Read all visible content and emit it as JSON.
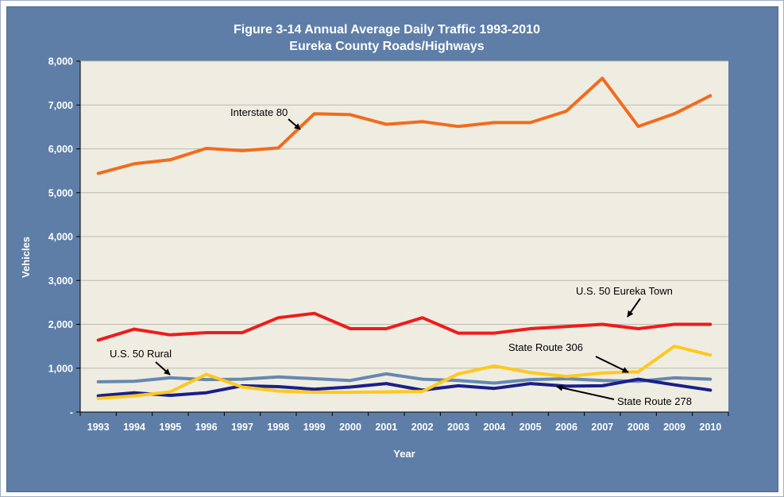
{
  "chart_data": {
    "type": "line",
    "title": "Figure 3-14 Annual Average Daily Traffic 1993-2010",
    "subtitle": "Eureka County Roads/Highways",
    "xlabel": "Year",
    "ylabel": "Vehicles",
    "ylim": [
      0,
      8000
    ],
    "y_ticks": [
      {
        "value": 0,
        "label": "-"
      },
      {
        "value": 1000,
        "label": "1,000"
      },
      {
        "value": 2000,
        "label": "2,000"
      },
      {
        "value": 3000,
        "label": "3,000"
      },
      {
        "value": 4000,
        "label": "4,000"
      },
      {
        "value": 5000,
        "label": "5,000"
      },
      {
        "value": 6000,
        "label": "6,000"
      },
      {
        "value": 7000,
        "label": "7,000"
      },
      {
        "value": 8000,
        "label": "8,000"
      }
    ],
    "grid": true,
    "legend": "none",
    "categories": [
      "1993",
      "1994",
      "1995",
      "1996",
      "1997",
      "1998",
      "1999",
      "2000",
      "2001",
      "2002",
      "2003",
      "2004",
      "2005",
      "2006",
      "2007",
      "2008",
      "2009",
      "2010"
    ],
    "series": [
      {
        "name": "Interstate 80",
        "color": "#f26b1d",
        "values": [
          5440,
          5660,
          5750,
          6010,
          5960,
          6020,
          6800,
          6780,
          6560,
          6620,
          6510,
          6600,
          6600,
          6860,
          7610,
          6510,
          6800,
          7210
        ]
      },
      {
        "name": "U.S. 50 Eureka Town",
        "color": "#ee1c1c",
        "values": [
          1640,
          1890,
          1760,
          1810,
          1810,
          2150,
          2250,
          1900,
          1900,
          2150,
          1800,
          1800,
          1900,
          1950,
          2000,
          1900,
          2000,
          2000
        ]
      },
      {
        "name": "U.S. 50 Rural",
        "color": "#6688b0",
        "values": [
          690,
          700,
          780,
          740,
          750,
          800,
          760,
          720,
          870,
          750,
          720,
          660,
          740,
          760,
          720,
          700,
          780,
          750
        ]
      },
      {
        "name": "State Route 306",
        "color": "#ffc81e",
        "values": [
          310,
          370,
          460,
          860,
          570,
          480,
          450,
          450,
          460,
          470,
          870,
          1050,
          900,
          810,
          890,
          920,
          1500,
          1300
        ]
      },
      {
        "name": "State Route 278",
        "color": "#1a1f8a",
        "values": [
          370,
          440,
          380,
          440,
          600,
          580,
          520,
          570,
          650,
          500,
          600,
          540,
          650,
          590,
          600,
          750,
          620,
          500
        ]
      }
    ],
    "annotations": [
      {
        "text": "Interstate 80",
        "series": "Interstate 80"
      },
      {
        "text": "U.S. 50 Eureka Town",
        "series": "U.S. 50 Eureka Town"
      },
      {
        "text": "U.S. 50 Rural",
        "series": "U.S. 50 Rural"
      },
      {
        "text": "State Route 306",
        "series": "State Route 306"
      },
      {
        "text": "State Route 278",
        "series": "State Route 278"
      }
    ],
    "colors": {
      "background": "#5e7ea8",
      "plot_area": "#efede2",
      "gridline": "#bdbab0"
    }
  }
}
